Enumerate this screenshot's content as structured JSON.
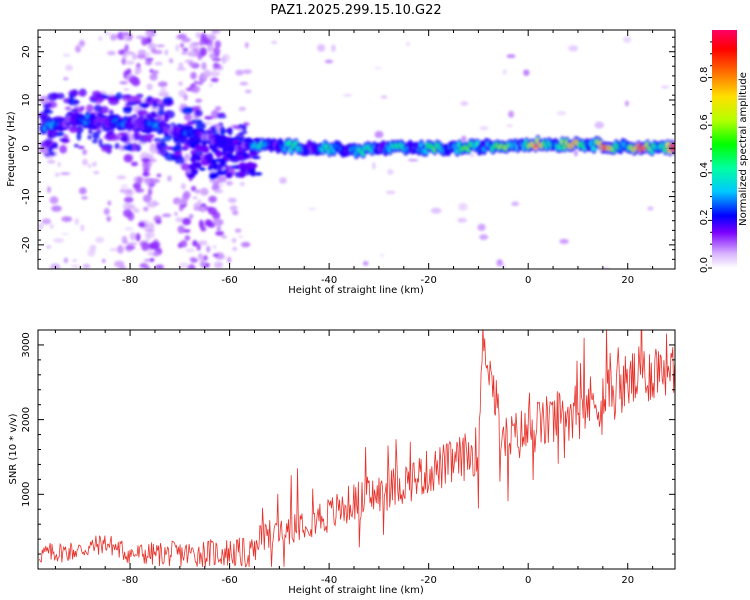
{
  "title": "PAZ1.2025.299.15.10.G22",
  "chart_data": [
    {
      "type": "heatmap",
      "name": "spectrogram",
      "title": "PAZ1.2025.299.15.10.G22",
      "xlabel": "Height of straight line (km)",
      "ylabel": "Frequency (Hz)",
      "xlim": [
        -98.5,
        29.5
      ],
      "ylim": [
        -25,
        24.5
      ],
      "xticks": [
        -80,
        -60,
        -40,
        -20,
        0,
        20
      ],
      "yticks": [
        -20,
        -10,
        0,
        10,
        20
      ],
      "colorbar": {
        "label": "Normalized spectral amplitude",
        "range": [
          0,
          1
        ],
        "ticks": [
          0.0,
          0.2,
          0.4,
          0.6,
          0.8
        ]
      },
      "ridge": {
        "x": [
          -97,
          -90,
          -85,
          -80,
          -75,
          -70,
          -65,
          -60,
          -55,
          -50,
          -45,
          -40,
          -35,
          -30,
          -25,
          -20,
          -15,
          -10,
          -5,
          0,
          5,
          10,
          15,
          20,
          25,
          29.5
        ],
        "frequency": [
          4.5,
          6,
          5.5,
          5.5,
          4.5,
          3.5,
          2.5,
          0.5,
          0.5,
          0.5,
          0.2,
          0,
          -0.5,
          0,
          0,
          0,
          0,
          0.3,
          0.5,
          1,
          0.8,
          1,
          0.6,
          0.3,
          0.1,
          0
        ],
        "amplitude": [
          0.35,
          0.3,
          0.3,
          0.3,
          0.3,
          0.3,
          0.25,
          0.25,
          0.4,
          0.45,
          0.45,
          0.45,
          0.5,
          0.5,
          0.5,
          0.55,
          0.6,
          0.6,
          0.65,
          0.75,
          0.85,
          0.8,
          0.9,
          0.85,
          0.9,
          1.0
        ]
      }
    },
    {
      "type": "line",
      "name": "snr",
      "xlabel": "Height of straight line (km)",
      "ylabel": "SNR (10 * v/v)",
      "xlim": [
        -98.5,
        29.5
      ],
      "ylim": [
        0,
        3200
      ],
      "xticks": [
        -80,
        -60,
        -40,
        -20,
        0,
        20
      ],
      "yticks": [
        1000,
        2000,
        3000
      ],
      "color": "#e8312a",
      "series": [
        {
          "name": "SNR",
          "x": [
            -98,
            -90,
            -85,
            -80,
            -70,
            -60,
            -55,
            -54,
            -50,
            -45,
            -40,
            -35,
            -30,
            -25,
            -20,
            -15,
            -10,
            -9,
            -5,
            0,
            5,
            10,
            15,
            20,
            25,
            29.5
          ],
          "y": [
            200,
            250,
            350,
            200,
            200,
            220,
            200,
            400,
            500,
            650,
            720,
            900,
            1000,
            1150,
            1300,
            1420,
            1600,
            3150,
            1700,
            1850,
            2000,
            2150,
            2300,
            2500,
            2650,
            2800
          ],
          "noise_amplitude": 300
        }
      ]
    }
  ]
}
